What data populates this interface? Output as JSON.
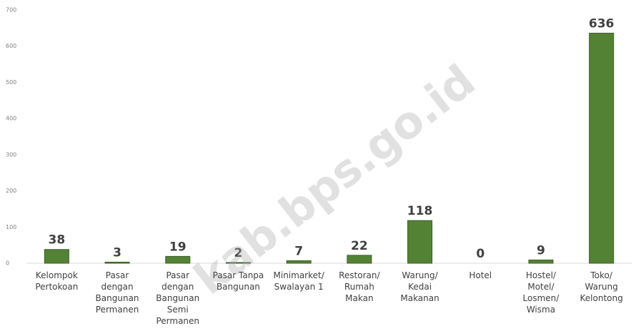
{
  "chart_data": {
    "type": "bar",
    "categories": [
      "Kelompok\nPertokoan",
      "Pasar\ndengan\nBangunan\nPermanen",
      "Pasar\ndengan\nBangunan\nSemi\nPermanen",
      "Pasar Tanpa\nBangunan",
      "Minimarket/\nSwalayan 1",
      "Restoran/\nRumah\nMakan",
      "Warung/\nKedai\nMakanan",
      "Hotel",
      "Hostel/\nMotel/\nLosmen/\nWisma",
      "Toko/\nWarung\nKelontong"
    ],
    "values": [
      38,
      3,
      19,
      2,
      7,
      22,
      118,
      0,
      9,
      636
    ],
    "color": "#548235",
    "ylim": [
      0,
      700
    ],
    "yticks": [
      0,
      100,
      200,
      300,
      400,
      500,
      600,
      700
    ],
    "grid": false,
    "watermark": "kab.bps.go.id"
  }
}
